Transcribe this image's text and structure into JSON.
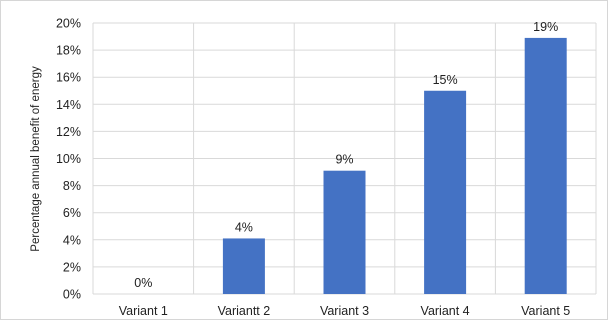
{
  "chart_data": {
    "type": "bar",
    "categories": [
      "Variant 1",
      "Variantt 2",
      "Variant 3",
      "Variant 4",
      "Variant 5"
    ],
    "values": [
      0,
      4.1,
      9.1,
      15.0,
      18.9
    ],
    "data_labels": [
      "0%",
      "4%",
      "9%",
      "15%",
      "19%"
    ],
    "ylabel": "Percentage annual benefit of energy",
    "xlabel": "",
    "ylim": [
      0,
      20
    ],
    "y_ticks": [
      0,
      2,
      4,
      6,
      8,
      10,
      12,
      14,
      16,
      18,
      20
    ],
    "y_tick_labels": [
      "0%",
      "2%",
      "4%",
      "6%",
      "8%",
      "10%",
      "12%",
      "14%",
      "16%",
      "18%",
      "20%"
    ],
    "grid": true,
    "bar_color": "#4472c4",
    "grid_color": "#d9d9d9"
  }
}
